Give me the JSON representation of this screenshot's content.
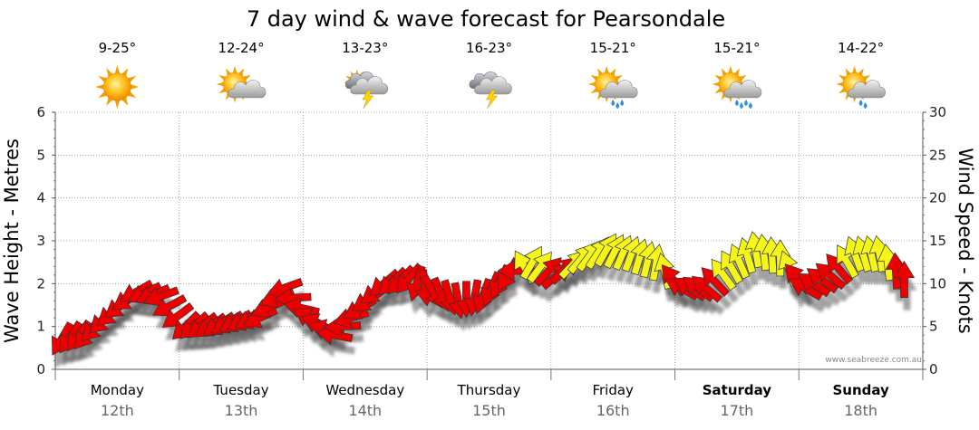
{
  "title": "7 day wind & wave forecast for Pearsondale",
  "credit": "www.seabreeze.com.au",
  "colors": {
    "strong": "#ee0000",
    "moderate": "#f5f51a",
    "outline": "#333333",
    "grid": "#999999"
  },
  "days": [
    {
      "name": "Monday",
      "date": "12th",
      "temp": "9-25°",
      "icon": "sun-icon",
      "weekend": false
    },
    {
      "name": "Tuesday",
      "date": "13th",
      "temp": "12-24°",
      "icon": "sun-cloud-icon",
      "weekend": false
    },
    {
      "name": "Wednesday",
      "date": "14th",
      "temp": "13-23°",
      "icon": "storm-sun-icon",
      "weekend": false
    },
    {
      "name": "Thursday",
      "date": "15th",
      "temp": "16-23°",
      "icon": "storm-cloud-icon",
      "weekend": false
    },
    {
      "name": "Friday",
      "date": "16th",
      "temp": "15-21°",
      "icon": "sun-rain-icon",
      "weekend": false
    },
    {
      "name": "Saturday",
      "date": "17th",
      "temp": "15-21°",
      "icon": "sun-heavy-rain-icon",
      "weekend": true
    },
    {
      "name": "Sunday",
      "date": "18th",
      "temp": "14-22°",
      "icon": "sun-cloud-light-rain-icon",
      "weekend": true
    }
  ],
  "chart_data": {
    "type": "line",
    "title": "7 day wind & wave forecast for Pearsondale",
    "ylabel_left": "Wave Height - Metres",
    "ylabel_right": "Wind Speed - Knots",
    "ylim_left": [
      0,
      6
    ],
    "ylim_right": [
      0,
      30
    ],
    "yticks_left": [
      "0",
      "1",
      "2",
      "3",
      "4",
      "5",
      "6"
    ],
    "yticks_right": [
      "0",
      "5",
      "10",
      "15",
      "20",
      "25",
      "30"
    ],
    "grid": true,
    "x_unit": "day",
    "series": [
      {
        "x": [
          0.05,
          0.25,
          0.45,
          0.65,
          0.85,
          1.05,
          1.25,
          1.45,
          1.65,
          1.85,
          2.05,
          2.25,
          2.45,
          2.65,
          2.85,
          3.05,
          3.25,
          3.45,
          3.65,
          3.85,
          4.05,
          4.25,
          4.45,
          4.65,
          4.85,
          5.05,
          5.25,
          5.45,
          5.65,
          5.85,
          6.05,
          6.25,
          6.45,
          6.65,
          6.85
        ],
        "y": [
          0.7,
          0.8,
          1.3,
          1.8,
          1.7,
          1.0,
          1.0,
          1.1,
          1.2,
          1.9,
          1.2,
          0.8,
          1.4,
          2.0,
          2.1,
          1.8,
          1.6,
          1.7,
          2.2,
          2.5,
          2.2,
          2.6,
          2.8,
          2.7,
          2.5,
          1.9,
          1.9,
          2.4,
          2.8,
          2.6,
          1.9,
          2.2,
          2.7,
          2.7,
          2.1
        ],
        "wind_direction_deg": [
          240,
          230,
          220,
          210,
          200,
          225,
          215,
          210,
          205,
          200,
          150,
          170,
          210,
          220,
          230,
          300,
          280,
          250,
          240,
          60,
          40,
          50,
          60,
          70,
          80,
          150,
          140,
          120,
          100,
          90,
          150,
          140,
          110,
          100,
          90
        ],
        "wind_category": [
          "strong",
          "strong",
          "strong",
          "strong",
          "strong",
          "strong",
          "strong",
          "strong",
          "strong",
          "strong",
          "strong",
          "strong",
          "strong",
          "strong",
          "strong",
          "strong",
          "strong",
          "strong",
          "strong",
          "moderate",
          "strong",
          "moderate",
          "moderate",
          "moderate",
          "moderate",
          "strong",
          "strong",
          "moderate",
          "moderate",
          "moderate",
          "strong",
          "strong",
          "moderate",
          "moderate",
          "strong"
        ]
      }
    ]
  }
}
